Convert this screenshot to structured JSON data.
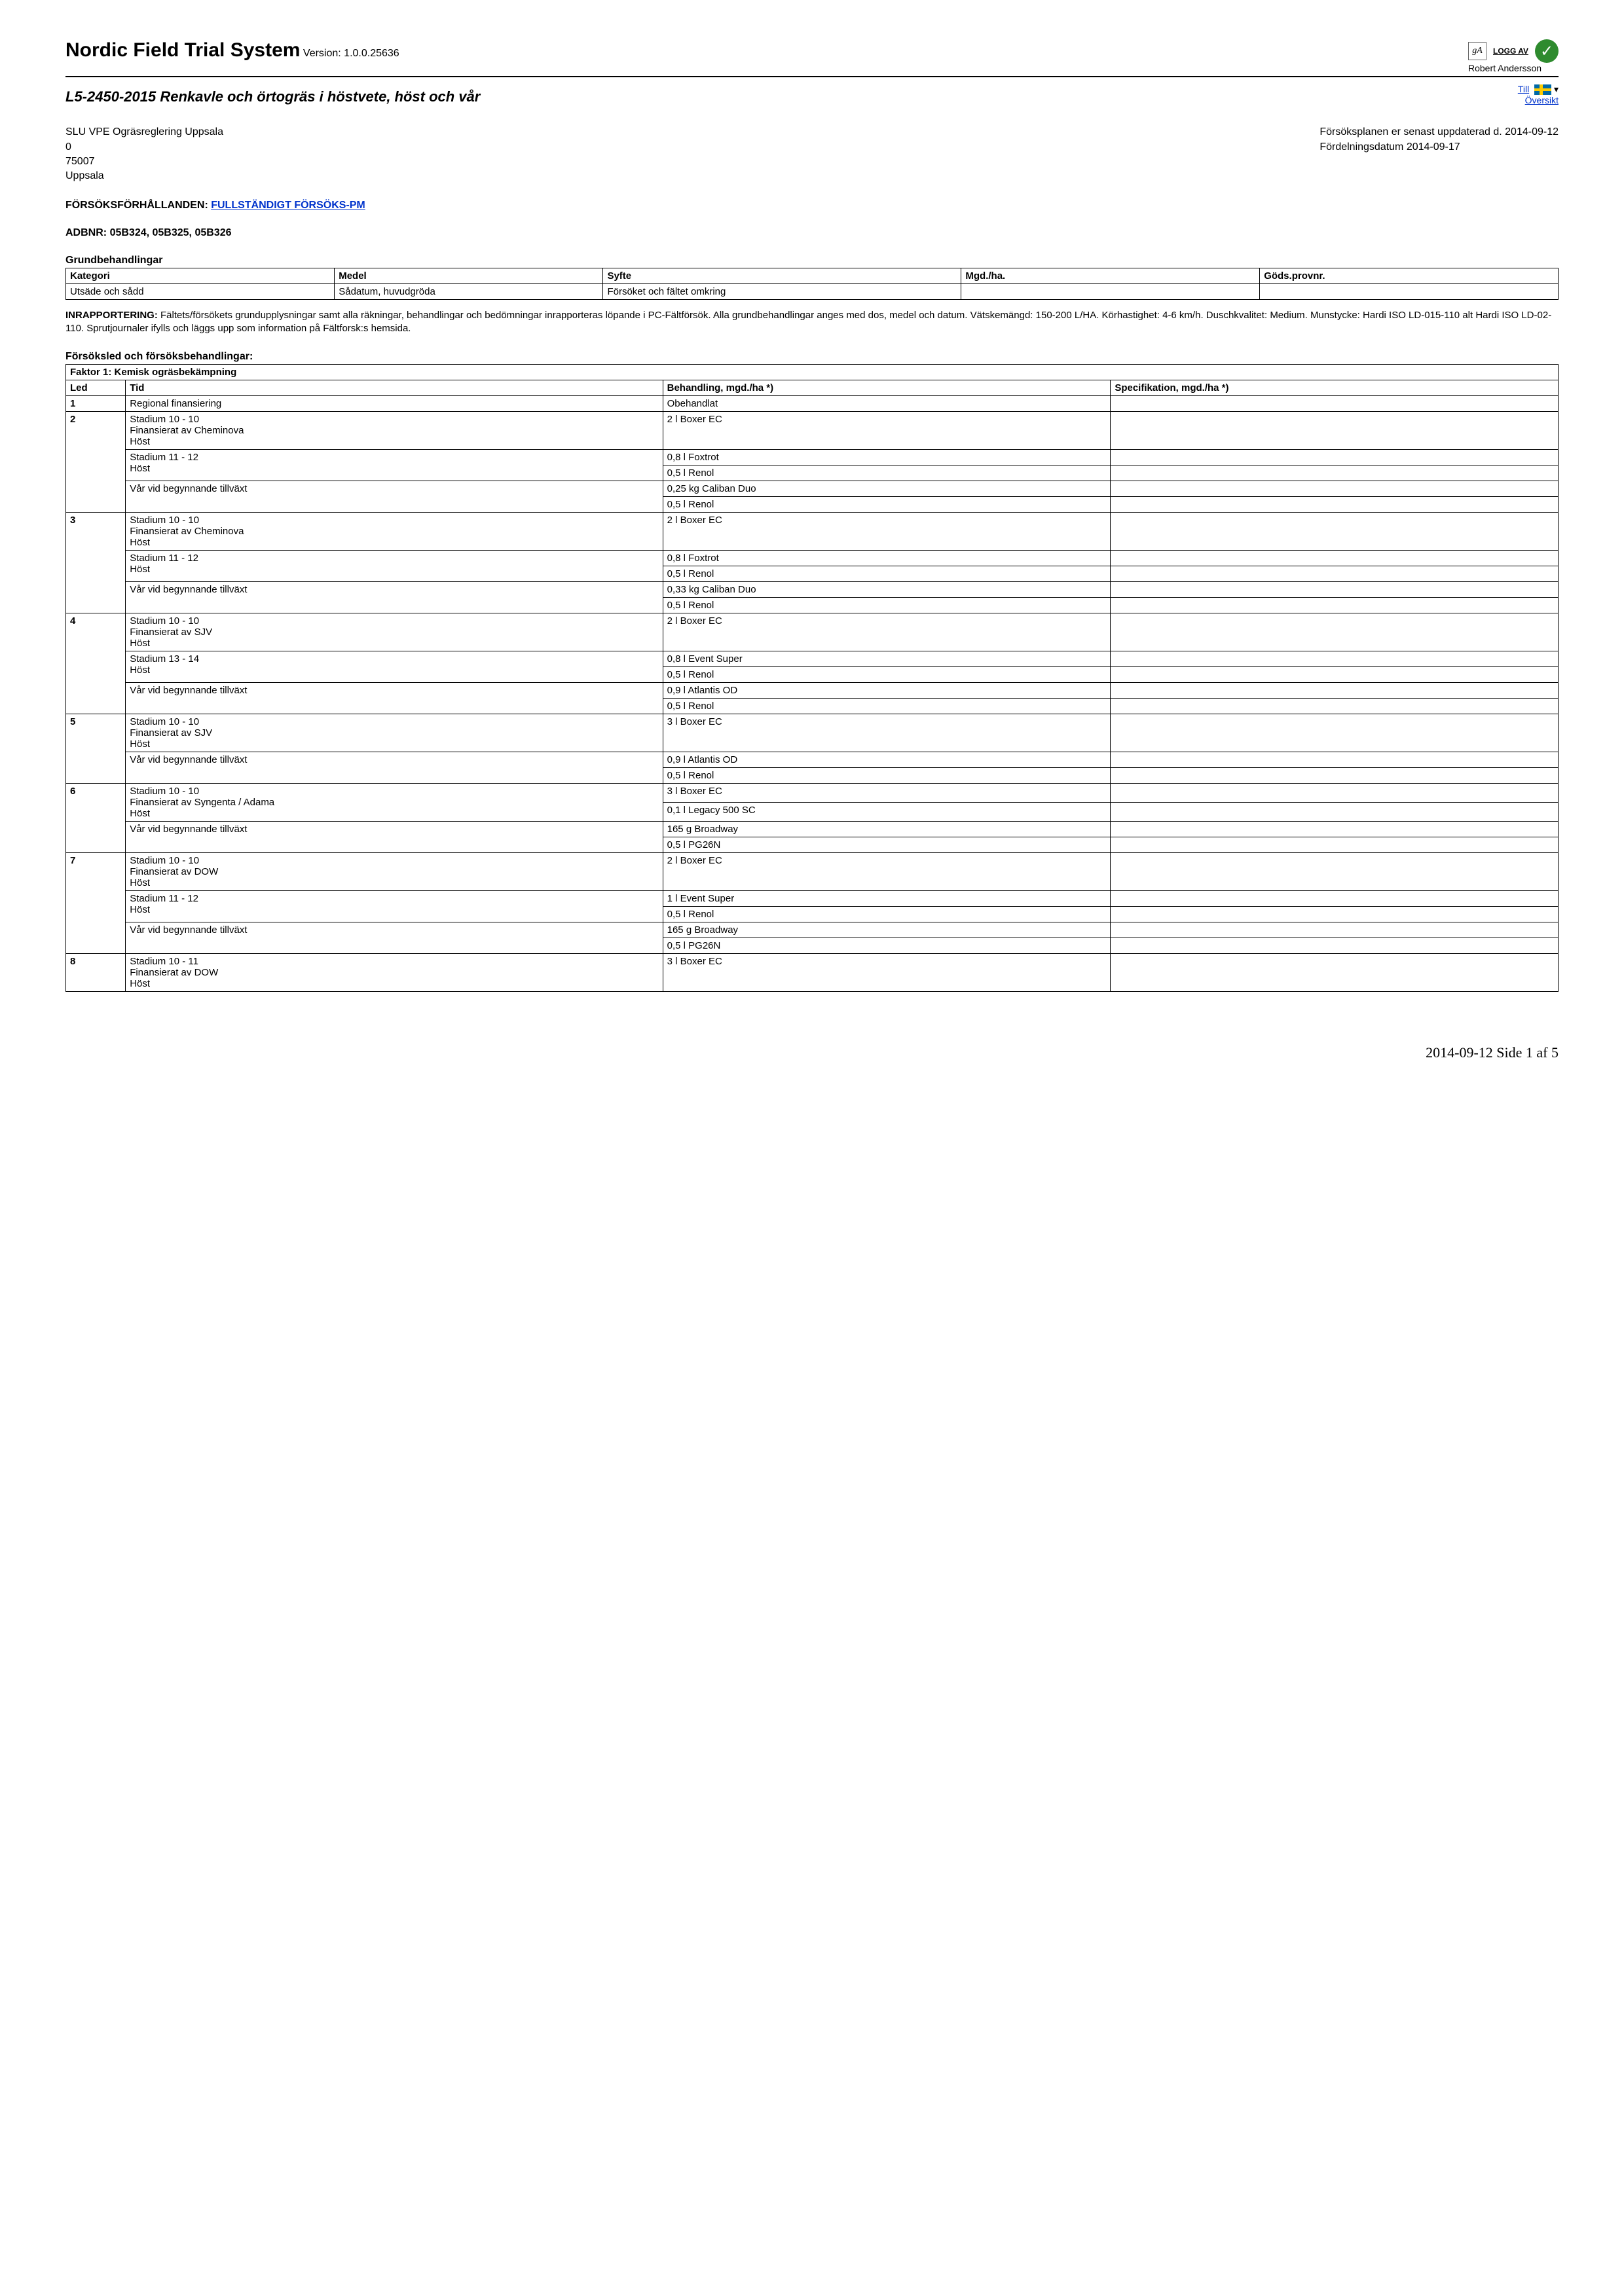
{
  "header": {
    "system_name": "Nordic Field Trial System",
    "version_label": "Version:",
    "version": "1.0.0.25636",
    "logg_av": "LOGG AV",
    "user": "Robert Andersson",
    "till": "Till",
    "oversikt": "Översikt"
  },
  "trial": {
    "title": "L5-2450-2015 Renkavle och örtogräs i höstvete, höst och vår"
  },
  "info_left": {
    "l1": "SLU VPE Ogräsreglering Uppsala",
    "l2": "0",
    "l3": "75007",
    "l4": "Uppsala"
  },
  "info_right": {
    "l1": "Försöksplanen er senast uppdaterad d. 2014-09-12",
    "l2": "Fördelningsdatum 2014-09-17"
  },
  "forsoksforhallanden": {
    "label": "FÖRSÖKSFÖRHÅLLANDEN:",
    "link": "FULLSTÄNDIGT FÖRSÖKS-PM"
  },
  "adb": {
    "label": "ADBNR:",
    "value": "05B324, 05B325, 05B326"
  },
  "grund": {
    "title": "Grundbehandlingar",
    "headers": [
      "Kategori",
      "Medel",
      "Syfte",
      "Mgd./ha.",
      "Göds.provnr."
    ],
    "row": [
      "Utsäde och sådd",
      "Sådatum, huvudgröda",
      "Försöket och fältet omkring",
      "",
      ""
    ]
  },
  "inrapport": {
    "label": "INRAPPORTERING:",
    "text": "Fältets/försökets grundupplysningar samt alla räkningar, behandlingar och bedömningar inrapporteras löpande i PC-Fältförsök. Alla grundbehandlingar anges med dos, medel och datum. Vätskemängd: 150-200 L/HA. Körhastighet: 4-6 km/h. Duschkvalitet: Medium. Munstycke: Hardi ISO LD-015-110 alt Hardi ISO LD-02-110. Sprutjournaler ifylls och läggs upp som information på Fältforsk:s hemsida."
  },
  "treat": {
    "title": "Försöksled och försöksbehandlingar:",
    "faktor": "Faktor 1: Kemisk ogräsbekämpning",
    "headers": [
      "Led",
      "Tid",
      "Behandling, mgd./ha *)",
      "Specifikation, mgd./ha *)"
    ],
    "groups": [
      {
        "led": "1",
        "blocks": [
          {
            "tid": [
              "Regional finansiering"
            ],
            "beh": [
              "Obehandlat"
            ]
          }
        ]
      },
      {
        "led": "2",
        "blocks": [
          {
            "tid": [
              "Stadium 10 - 10",
              "Finansierat av Cheminova",
              "Höst"
            ],
            "beh": [
              "2 l Boxer EC"
            ]
          },
          {
            "tid": [
              "Stadium 11 - 12",
              "Höst"
            ],
            "beh": [
              "0,8 l Foxtrot",
              "0,5 l Renol"
            ]
          },
          {
            "tid": [
              "Vår vid begynnande tillväxt"
            ],
            "beh": [
              "0,25 kg Caliban Duo",
              "0,5 l Renol"
            ]
          }
        ]
      },
      {
        "led": "3",
        "blocks": [
          {
            "tid": [
              "Stadium 10 - 10",
              "Finansierat av Cheminova",
              "Höst"
            ],
            "beh": [
              "2 l Boxer EC"
            ]
          },
          {
            "tid": [
              "Stadium 11 - 12",
              "Höst"
            ],
            "beh": [
              "0,8 l Foxtrot",
              "0,5 l Renol"
            ]
          },
          {
            "tid": [
              "Vår vid begynnande tillväxt"
            ],
            "beh": [
              "0,33 kg Caliban Duo",
              "0,5 l Renol"
            ]
          }
        ]
      },
      {
        "led": "4",
        "blocks": [
          {
            "tid": [
              "Stadium 10 - 10",
              "Finansierat av SJV",
              "Höst"
            ],
            "beh": [
              "2 l Boxer EC"
            ]
          },
          {
            "tid": [
              "Stadium 13 - 14",
              "Höst"
            ],
            "beh": [
              "0,8 l Event Super",
              "0,5 l Renol"
            ]
          },
          {
            "tid": [
              "Vår vid begynnande tillväxt"
            ],
            "beh": [
              "0,9 l Atlantis OD",
              "0,5 l Renol"
            ]
          }
        ]
      },
      {
        "led": "5",
        "blocks": [
          {
            "tid": [
              "Stadium 10 - 10",
              "Finansierat av SJV",
              "Höst"
            ],
            "beh": [
              "3 l Boxer EC"
            ]
          },
          {
            "tid": [
              "Vår vid begynnande tillväxt"
            ],
            "beh": [
              "0,9 l Atlantis OD",
              "0,5 l Renol"
            ]
          }
        ]
      },
      {
        "led": "6",
        "blocks": [
          {
            "tid": [
              "Stadium 10 - 10",
              "Finansierat av Syngenta / Adama",
              "Höst"
            ],
            "beh": [
              "3 l Boxer EC",
              "0,1 l Legacy 500 SC"
            ]
          },
          {
            "tid": [
              "Vår vid begynnande tillväxt"
            ],
            "beh": [
              "165 g Broadway",
              "0,5 l PG26N"
            ]
          }
        ]
      },
      {
        "led": "7",
        "blocks": [
          {
            "tid": [
              "Stadium 10 - 10",
              "Finansierat av DOW",
              "Höst"
            ],
            "beh": [
              "2 l Boxer EC"
            ]
          },
          {
            "tid": [
              "Stadium 11 - 12",
              "Höst"
            ],
            "beh": [
              "1 l Event Super",
              "0,5 l Renol"
            ]
          },
          {
            "tid": [
              "Vår vid begynnande tillväxt"
            ],
            "beh": [
              "165 g Broadway",
              "0,5 l PG26N"
            ]
          }
        ]
      },
      {
        "led": "8",
        "blocks": [
          {
            "tid": [
              "Stadium 10 - 11",
              "Finansierat av DOW",
              "Höst"
            ],
            "beh": [
              "3 l Boxer EC"
            ]
          }
        ]
      }
    ]
  },
  "footer": {
    "date": "2014-09-12",
    "page": "Side 1 af 5"
  }
}
